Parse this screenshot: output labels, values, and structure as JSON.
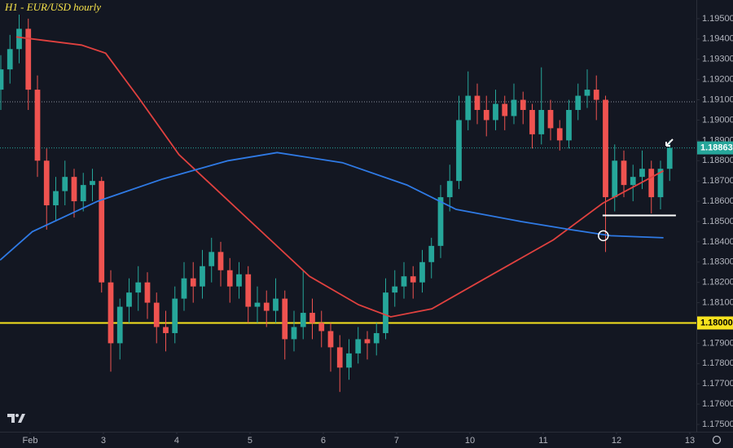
{
  "chart_data": {
    "type": "candlestick",
    "title": "H1 - EUR/USD hourly",
    "up_color": "#26a69a",
    "down_color": "#ef5350",
    "x": [
      -0.4,
      -0.275,
      -0.15,
      -0.025,
      0.1,
      0.225,
      0.35,
      0.475,
      0.6,
      0.725,
      0.85,
      0.975,
      1.1,
      1.225,
      1.35,
      1.475,
      1.6,
      1.725,
      1.85,
      1.975,
      2.1,
      2.225,
      2.35,
      2.475,
      2.6,
      2.725,
      2.85,
      2.975,
      3.1,
      3.225,
      3.35,
      3.475,
      3.6,
      3.725,
      3.85,
      3.975,
      4.1,
      4.225,
      4.35,
      4.475,
      4.6,
      4.725,
      4.85,
      4.975,
      5.1,
      5.225,
      5.35,
      5.475,
      5.6,
      5.725,
      5.85,
      5.975,
      6.1,
      6.225,
      6.35,
      6.475,
      6.6,
      6.725,
      6.85,
      6.975,
      7.1,
      7.225,
      7.35,
      7.475,
      7.6,
      7.725,
      7.85,
      7.975,
      8.1,
      8.225,
      8.35,
      8.475,
      8.6,
      8.725
    ],
    "open": [
      1.1915,
      1.1925,
      1.1935,
      1.1945,
      1.1915,
      1.188,
      1.1858,
      1.1865,
      1.1872,
      1.186,
      1.1868,
      1.187,
      1.182,
      1.179,
      1.1808,
      1.1815,
      1.182,
      1.181,
      1.1798,
      1.1795,
      1.1812,
      1.1822,
      1.1818,
      1.1828,
      1.1835,
      1.1826,
      1.1818,
      1.1824,
      1.1808,
      1.181,
      1.1806,
      1.1812,
      1.1792,
      1.1798,
      1.1805,
      1.18,
      1.1796,
      1.1788,
      1.1778,
      1.1785,
      1.1792,
      1.179,
      1.1795,
      1.1815,
      1.1818,
      1.1823,
      1.182,
      1.183,
      1.1838,
      1.1862,
      1.187,
      1.19,
      1.1912,
      1.1905,
      1.19,
      1.1908,
      1.1902,
      1.191,
      1.1905,
      1.1893,
      1.1905,
      1.1896,
      1.189,
      1.1905,
      1.1912,
      1.1915,
      1.191,
      1.1862,
      1.188,
      1.1868,
      1.1872,
      1.1876,
      1.1862,
      1.1876
    ],
    "high": [
      1.1932,
      1.1942,
      1.1952,
      1.195,
      1.1922,
      1.1886,
      1.1872,
      1.188,
      1.1876,
      1.1874,
      1.1876,
      1.1872,
      1.1826,
      1.1812,
      1.1822,
      1.1828,
      1.1825,
      1.1815,
      1.1806,
      1.1818,
      1.183,
      1.183,
      1.1836,
      1.1842,
      1.184,
      1.1832,
      1.183,
      1.1828,
      1.1818,
      1.1816,
      1.1822,
      1.1816,
      1.1806,
      1.1826,
      1.1812,
      1.1806,
      1.18,
      1.1794,
      1.1792,
      1.1798,
      1.1796,
      1.18,
      1.1822,
      1.1826,
      1.183,
      1.1828,
      1.1836,
      1.1842,
      1.1868,
      1.1878,
      1.1912,
      1.1924,
      1.1918,
      1.1912,
      1.1915,
      1.1912,
      1.1918,
      1.1914,
      1.1908,
      1.1926,
      1.191,
      1.19,
      1.191,
      1.1918,
      1.1925,
      1.1922,
      1.1912,
      1.1888,
      1.1885,
      1.1878,
      1.1885,
      1.188,
      1.188,
      1.189
    ],
    "low": [
      1.1905,
      1.1918,
      1.1928,
      1.1905,
      1.1872,
      1.1846,
      1.185,
      1.1858,
      1.1852,
      1.1855,
      1.186,
      1.1815,
      1.1776,
      1.1782,
      1.18,
      1.1806,
      1.1802,
      1.179,
      1.1786,
      1.179,
      1.1806,
      1.181,
      1.1812,
      1.182,
      1.1818,
      1.181,
      1.1812,
      1.18,
      1.18,
      1.1798,
      1.18,
      1.1782,
      1.1786,
      1.1792,
      1.1792,
      1.1788,
      1.1776,
      1.1766,
      1.1772,
      1.178,
      1.1782,
      1.1784,
      1.1792,
      1.1808,
      1.1812,
      1.1812,
      1.1815,
      1.1822,
      1.1832,
      1.1855,
      1.1866,
      1.1895,
      1.1898,
      1.1892,
      1.1895,
      1.1895,
      1.1898,
      1.1898,
      1.1886,
      1.1888,
      1.189,
      1.1885,
      1.1886,
      1.19,
      1.1906,
      1.19,
      1.1835,
      1.1855,
      1.1862,
      1.186,
      1.1866,
      1.1854,
      1.1856,
      1.187
    ],
    "close": [
      1.1925,
      1.1935,
      1.1945,
      1.1915,
      1.188,
      1.1858,
      1.1865,
      1.1872,
      1.186,
      1.1868,
      1.187,
      1.182,
      1.179,
      1.1808,
      1.1815,
      1.182,
      1.181,
      1.1798,
      1.1795,
      1.1812,
      1.1822,
      1.1818,
      1.1828,
      1.1835,
      1.1826,
      1.1818,
      1.1824,
      1.1808,
      1.181,
      1.1806,
      1.1812,
      1.1792,
      1.1798,
      1.1805,
      1.18,
      1.1796,
      1.1788,
      1.1778,
      1.1785,
      1.1792,
      1.179,
      1.1795,
      1.1815,
      1.1818,
      1.1823,
      1.182,
      1.183,
      1.1838,
      1.1862,
      1.187,
      1.19,
      1.1912,
      1.1905,
      1.19,
      1.1908,
      1.1902,
      1.191,
      1.1905,
      1.1893,
      1.1905,
      1.1896,
      1.189,
      1.1905,
      1.1912,
      1.1915,
      1.191,
      1.1862,
      1.188,
      1.1868,
      1.1872,
      1.1876,
      1.1862,
      1.1876,
      1.18863
    ],
    "series": [
      {
        "color": "#e0413f",
        "x": [
          -0.19,
          0.7,
          1.03,
          1.48,
          2.03,
          2.92,
          3.81,
          4.48,
          4.92,
          5.48,
          6.26,
          7.14,
          7.81,
          8.64
        ],
        "values": [
          1.1941,
          1.1937,
          1.1933,
          1.1911,
          1.1883,
          1.1853,
          1.1823,
          1.1809,
          1.1803,
          1.1807,
          1.1823,
          1.1841,
          1.1859,
          1.1875
        ]
      },
      {
        "color": "#2f7ae5",
        "x": [
          -0.41,
          0.03,
          0.92,
          1.81,
          2.7,
          3.37,
          4.26,
          5.14,
          5.81,
          6.7,
          7.37,
          7.92,
          8.64
        ],
        "values": [
          1.1831,
          1.1845,
          1.186,
          1.1871,
          1.188,
          1.1884,
          1.1879,
          1.1868,
          1.1856,
          1.185,
          1.1846,
          1.1843,
          1.1842
        ]
      }
    ],
    "hlines": [
      {
        "value": 1.1909,
        "color": "#8a8f9c",
        "dash": true
      },
      {
        "value": 1.18863,
        "label": "1.18863",
        "color": "#26a69a",
        "dash": true,
        "label_color": "#ffffff"
      },
      {
        "value": 1.18,
        "label": "1.18000",
        "color": "#f7e31e",
        "dash": false,
        "label_color": "#000000"
      }
    ],
    "segments": [
      {
        "x": [
          7.81,
          8.81
        ],
        "value": 1.1853,
        "color": "#ffffff"
      }
    ],
    "markers": [
      {
        "x": 7.82,
        "value": 1.1843,
        "color": "#ffffff"
      }
    ],
    "xlim": [
      -0.411,
      9.089
    ],
    "ylim": [
      1.17464,
      1.19592
    ],
    "xticks": [
      {
        "value": 0,
        "label": "Feb"
      },
      {
        "value": 1,
        "label": "3"
      },
      {
        "value": 2,
        "label": "4"
      },
      {
        "value": 3,
        "label": "5"
      },
      {
        "value": 4,
        "label": "6"
      },
      {
        "value": 5,
        "label": "7"
      },
      {
        "value": 6,
        "label": "10"
      },
      {
        "value": 7,
        "label": "11"
      },
      {
        "value": 8,
        "label": "12"
      },
      {
        "value": 9,
        "label": "13"
      }
    ],
    "yticks": [
      {
        "value": 1.175,
        "label": "1.17500"
      },
      {
        "value": 1.176,
        "label": "1.17600"
      },
      {
        "value": 1.177,
        "label": "1.17700"
      },
      {
        "value": 1.178,
        "label": "1.17800"
      },
      {
        "value": 1.179,
        "label": "1.17900"
      },
      {
        "value": 1.18,
        "label": "1.18000"
      },
      {
        "value": 1.181,
        "label": "1.18100"
      },
      {
        "value": 1.182,
        "label": "1.18200"
      },
      {
        "value": 1.183,
        "label": "1.18300"
      },
      {
        "value": 1.184,
        "label": "1.18400"
      },
      {
        "value": 1.185,
        "label": "1.18500"
      },
      {
        "value": 1.186,
        "label": "1.18600"
      },
      {
        "value": 1.187,
        "label": "1.18700"
      },
      {
        "value": 1.188,
        "label": "1.18800"
      },
      {
        "value": 1.189,
        "label": "1.18900"
      },
      {
        "value": 1.19,
        "label": "1.19000"
      },
      {
        "value": 1.191,
        "label": "1.19100"
      },
      {
        "value": 1.192,
        "label": "1.19200"
      },
      {
        "value": 1.193,
        "label": "1.19300"
      },
      {
        "value": 1.194,
        "label": "1.19400"
      },
      {
        "value": 1.195,
        "label": "1.19500"
      }
    ],
    "grid": false
  }
}
